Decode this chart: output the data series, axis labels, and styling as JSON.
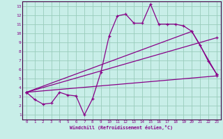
{
  "xlabel": "Windchill (Refroidissement éolien,°C)",
  "xlim": [
    -0.5,
    23.5
  ],
  "ylim": [
    0.5,
    13.5
  ],
  "xticks": [
    0,
    1,
    2,
    3,
    4,
    5,
    6,
    7,
    8,
    9,
    10,
    11,
    12,
    13,
    14,
    15,
    16,
    17,
    18,
    19,
    20,
    21,
    22,
    23
  ],
  "yticks": [
    1,
    2,
    3,
    4,
    5,
    6,
    7,
    8,
    9,
    10,
    11,
    12,
    13
  ],
  "bg_color": "#c8eee8",
  "line_color": "#880088",
  "grid_color": "#99ccbb",
  "spine_color": "#440044",
  "line1_x": [
    0,
    1,
    2,
    3,
    4,
    5,
    6,
    7,
    8,
    9,
    10,
    11,
    12,
    13,
    14,
    15,
    16,
    17,
    18,
    19,
    20,
    21,
    22,
    23
  ],
  "line1_y": [
    3.5,
    2.7,
    2.2,
    2.3,
    3.5,
    3.2,
    3.1,
    1.0,
    2.8,
    5.7,
    9.7,
    11.9,
    12.1,
    11.1,
    11.1,
    13.2,
    11.0,
    11.0,
    11.0,
    10.8,
    10.2,
    8.7,
    6.9,
    5.5
  ],
  "line2_x": [
    0,
    23
  ],
  "line2_y": [
    3.5,
    5.3
  ],
  "line3_x": [
    0,
    20,
    23
  ],
  "line3_y": [
    3.5,
    10.2,
    5.5
  ],
  "line4_x": [
    0,
    23
  ],
  "line4_y": [
    3.5,
    9.5
  ]
}
